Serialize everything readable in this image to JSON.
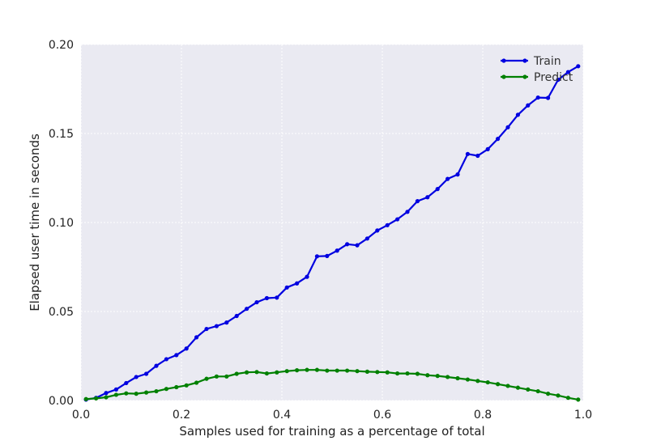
{
  "chart_data": {
    "type": "line",
    "title": "",
    "xlabel": "Samples used for training as a percentage of total",
    "ylabel": "Elapsed user time in seconds",
    "xlim": [
      0.0,
      1.0
    ],
    "ylim": [
      0.0,
      0.2
    ],
    "xticks": [
      "0.0",
      "0.2",
      "0.4",
      "0.6",
      "0.8",
      "1.0"
    ],
    "yticks": [
      "0.00",
      "0.05",
      "0.10",
      "0.15",
      "0.20"
    ],
    "grid": true,
    "legend_position": "top-right",
    "x": [
      0.01,
      0.03,
      0.05,
      0.07,
      0.09,
      0.11,
      0.13,
      0.15,
      0.17,
      0.19,
      0.21,
      0.23,
      0.25,
      0.27,
      0.29,
      0.31,
      0.33,
      0.35,
      0.37,
      0.39,
      0.41,
      0.43,
      0.45,
      0.47,
      0.49,
      0.51,
      0.53,
      0.55,
      0.57,
      0.59,
      0.61,
      0.63,
      0.65,
      0.67,
      0.69,
      0.71,
      0.73,
      0.75,
      0.77,
      0.79,
      0.81,
      0.83,
      0.85,
      0.87,
      0.89,
      0.91,
      0.93,
      0.95,
      0.97,
      0.99
    ],
    "series": [
      {
        "name": "Train",
        "color": "#0000e0",
        "values": [
          0.0005,
          0.0015,
          0.0042,
          0.0062,
          0.0098,
          0.0132,
          0.015,
          0.0195,
          0.0232,
          0.0255,
          0.0292,
          0.0355,
          0.0402,
          0.0418,
          0.0438,
          0.0475,
          0.0515,
          0.0552,
          0.0575,
          0.0578,
          0.0635,
          0.0658,
          0.0695,
          0.081,
          0.0812,
          0.0842,
          0.0878,
          0.0872,
          0.091,
          0.0955,
          0.0985,
          0.1018,
          0.106,
          0.112,
          0.1142,
          0.1188,
          0.1245,
          0.127,
          0.1385,
          0.1375,
          0.1412,
          0.147,
          0.1535,
          0.1605,
          0.1658,
          0.1702,
          0.17,
          0.1802,
          0.1845,
          0.1878
        ]
      },
      {
        "name": "Predict",
        "color": "#008000",
        "values": [
          0.0008,
          0.0012,
          0.0018,
          0.0032,
          0.004,
          0.0038,
          0.0045,
          0.0052,
          0.0065,
          0.0075,
          0.0085,
          0.01,
          0.0122,
          0.0135,
          0.0135,
          0.015,
          0.0158,
          0.016,
          0.0152,
          0.0158,
          0.0165,
          0.017,
          0.0172,
          0.0172,
          0.0168,
          0.0168,
          0.0168,
          0.0165,
          0.0162,
          0.016,
          0.0158,
          0.0152,
          0.0152,
          0.015,
          0.0142,
          0.0138,
          0.0132,
          0.0125,
          0.0118,
          0.011,
          0.0102,
          0.0092,
          0.0082,
          0.0072,
          0.0062,
          0.0052,
          0.0038,
          0.0028,
          0.0015,
          0.0005
        ]
      }
    ]
  },
  "colors": {
    "plot_background": "#eaeaf2",
    "grid": "#ffffff"
  }
}
